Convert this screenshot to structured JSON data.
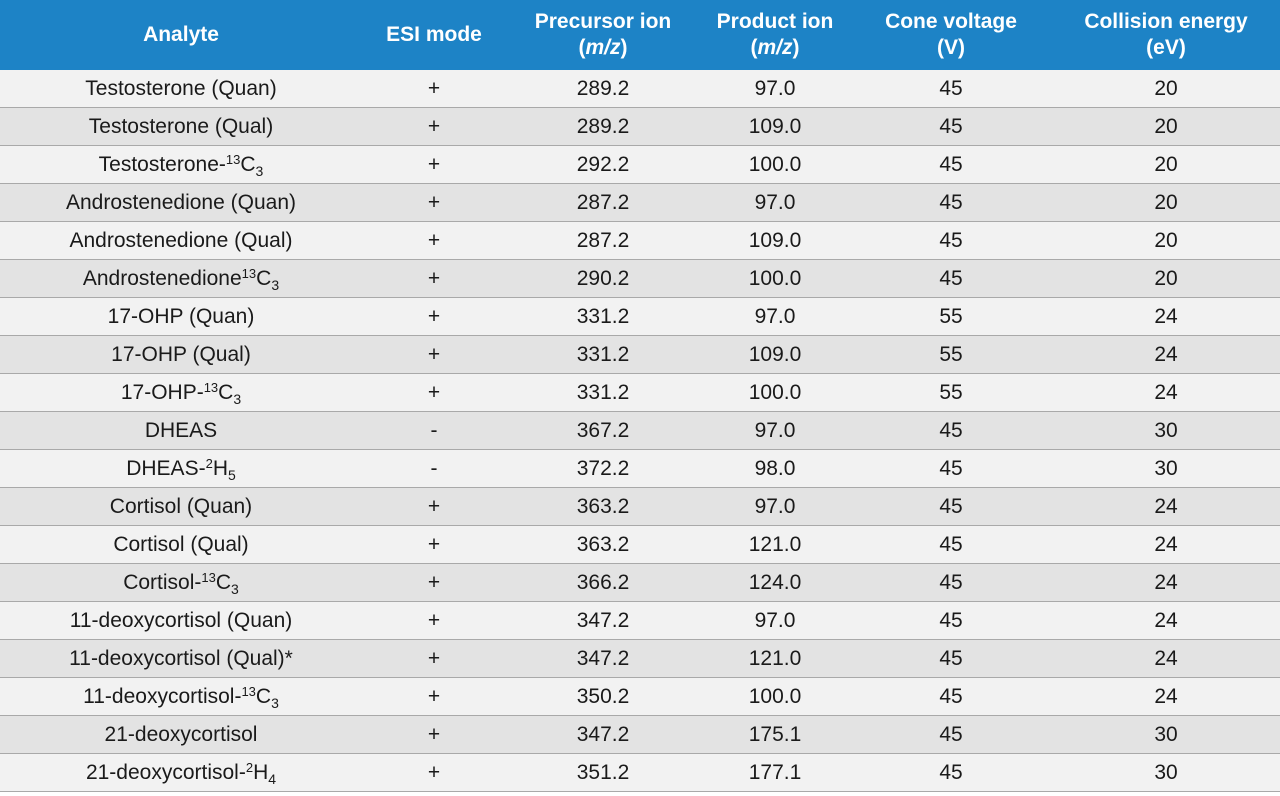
{
  "headers": {
    "analyte": "Analyte",
    "esi_mode": "ESI mode",
    "precursor": "Precursor ion",
    "precursor_unit": "m/z",
    "product": "Product ion",
    "product_unit": "m/z",
    "cone": "Cone voltage",
    "cone_unit": "(V)",
    "collision": "Collision energy",
    "collision_unit": "(eV)"
  },
  "rows": [
    {
      "name": "Testosterone (Quan)",
      "mode": "+",
      "precursor": "289.2",
      "product": "97.0",
      "cone": "45",
      "collision": "20"
    },
    {
      "name": "Testosterone (Qual)",
      "mode": "+",
      "precursor": "289.2",
      "product": "109.0",
      "cone": "45",
      "collision": "20"
    },
    {
      "name": "Testosterone-",
      "sup": "13",
      "base": "C",
      "sub": "3",
      "mode": "+",
      "precursor": "292.2",
      "product": "100.0",
      "cone": "45",
      "collision": "20"
    },
    {
      "name": "Androstenedione (Quan)",
      "mode": "+",
      "precursor": "287.2",
      "product": "97.0",
      "cone": "45",
      "collision": "20"
    },
    {
      "name": "Androstenedione (Qual)",
      "mode": "+",
      "precursor": "287.2",
      "product": "109.0",
      "cone": "45",
      "collision": "20"
    },
    {
      "name": "Androstenedione",
      "sup": "13",
      "base": "C",
      "sub": "3",
      "mode": "+",
      "precursor": "290.2",
      "product": "100.0",
      "cone": "45",
      "collision": "20"
    },
    {
      "name": "17-OHP (Quan)",
      "mode": "+",
      "precursor": "331.2",
      "product": "97.0",
      "cone": "55",
      "collision": "24"
    },
    {
      "name": "17-OHP (Qual)",
      "mode": "+",
      "precursor": "331.2",
      "product": "109.0",
      "cone": "55",
      "collision": "24"
    },
    {
      "name": "17-OHP-",
      "sup": "13",
      "base": "C",
      "sub": "3",
      "mode": "+",
      "precursor": "331.2",
      "product": "100.0",
      "cone": "55",
      "collision": "24"
    },
    {
      "name": "DHEAS",
      "mode": "-",
      "precursor": "367.2",
      "product": "97.0",
      "cone": "45",
      "collision": "30"
    },
    {
      "name": "DHEAS-",
      "sup": "2",
      "base": "H",
      "sub": "5",
      "mode": "-",
      "precursor": "372.2",
      "product": "98.0",
      "cone": "45",
      "collision": "30"
    },
    {
      "name": "Cortisol (Quan)",
      "mode": "+",
      "precursor": "363.2",
      "product": "97.0",
      "cone": "45",
      "collision": "24"
    },
    {
      "name": "Cortisol (Qual)",
      "mode": "+",
      "precursor": "363.2",
      "product": "121.0",
      "cone": "45",
      "collision": "24"
    },
    {
      "name": "Cortisol-",
      "sup": "13",
      "base": "C",
      "sub": "3",
      "mode": "+",
      "precursor": "366.2",
      "product": "124.0",
      "cone": "45",
      "collision": "24"
    },
    {
      "name": "11-deoxycortisol (Quan)",
      "mode": "+",
      "precursor": "347.2",
      "product": "97.0",
      "cone": "45",
      "collision": "24"
    },
    {
      "name": "11-deoxycortisol (Qual)*",
      "mode": "+",
      "precursor": "347.2",
      "product": "121.0",
      "cone": "45",
      "collision": "24"
    },
    {
      "name": "11-deoxycortisol-",
      "sup": "13",
      "base": "C",
      "sub": "3",
      "mode": "+",
      "precursor": "350.2",
      "product": "100.0",
      "cone": "45",
      "collision": "24"
    },
    {
      "name": "21-deoxycortisol",
      "mode": "+",
      "precursor": "347.2",
      "product": "175.1",
      "cone": "45",
      "collision": "30"
    },
    {
      "name": "21-deoxycortisol-",
      "sup": "2",
      "base": "H",
      "sub": "4",
      "mode": "+",
      "precursor": "351.2",
      "product": "177.1",
      "cone": "45",
      "collision": "30"
    }
  ]
}
